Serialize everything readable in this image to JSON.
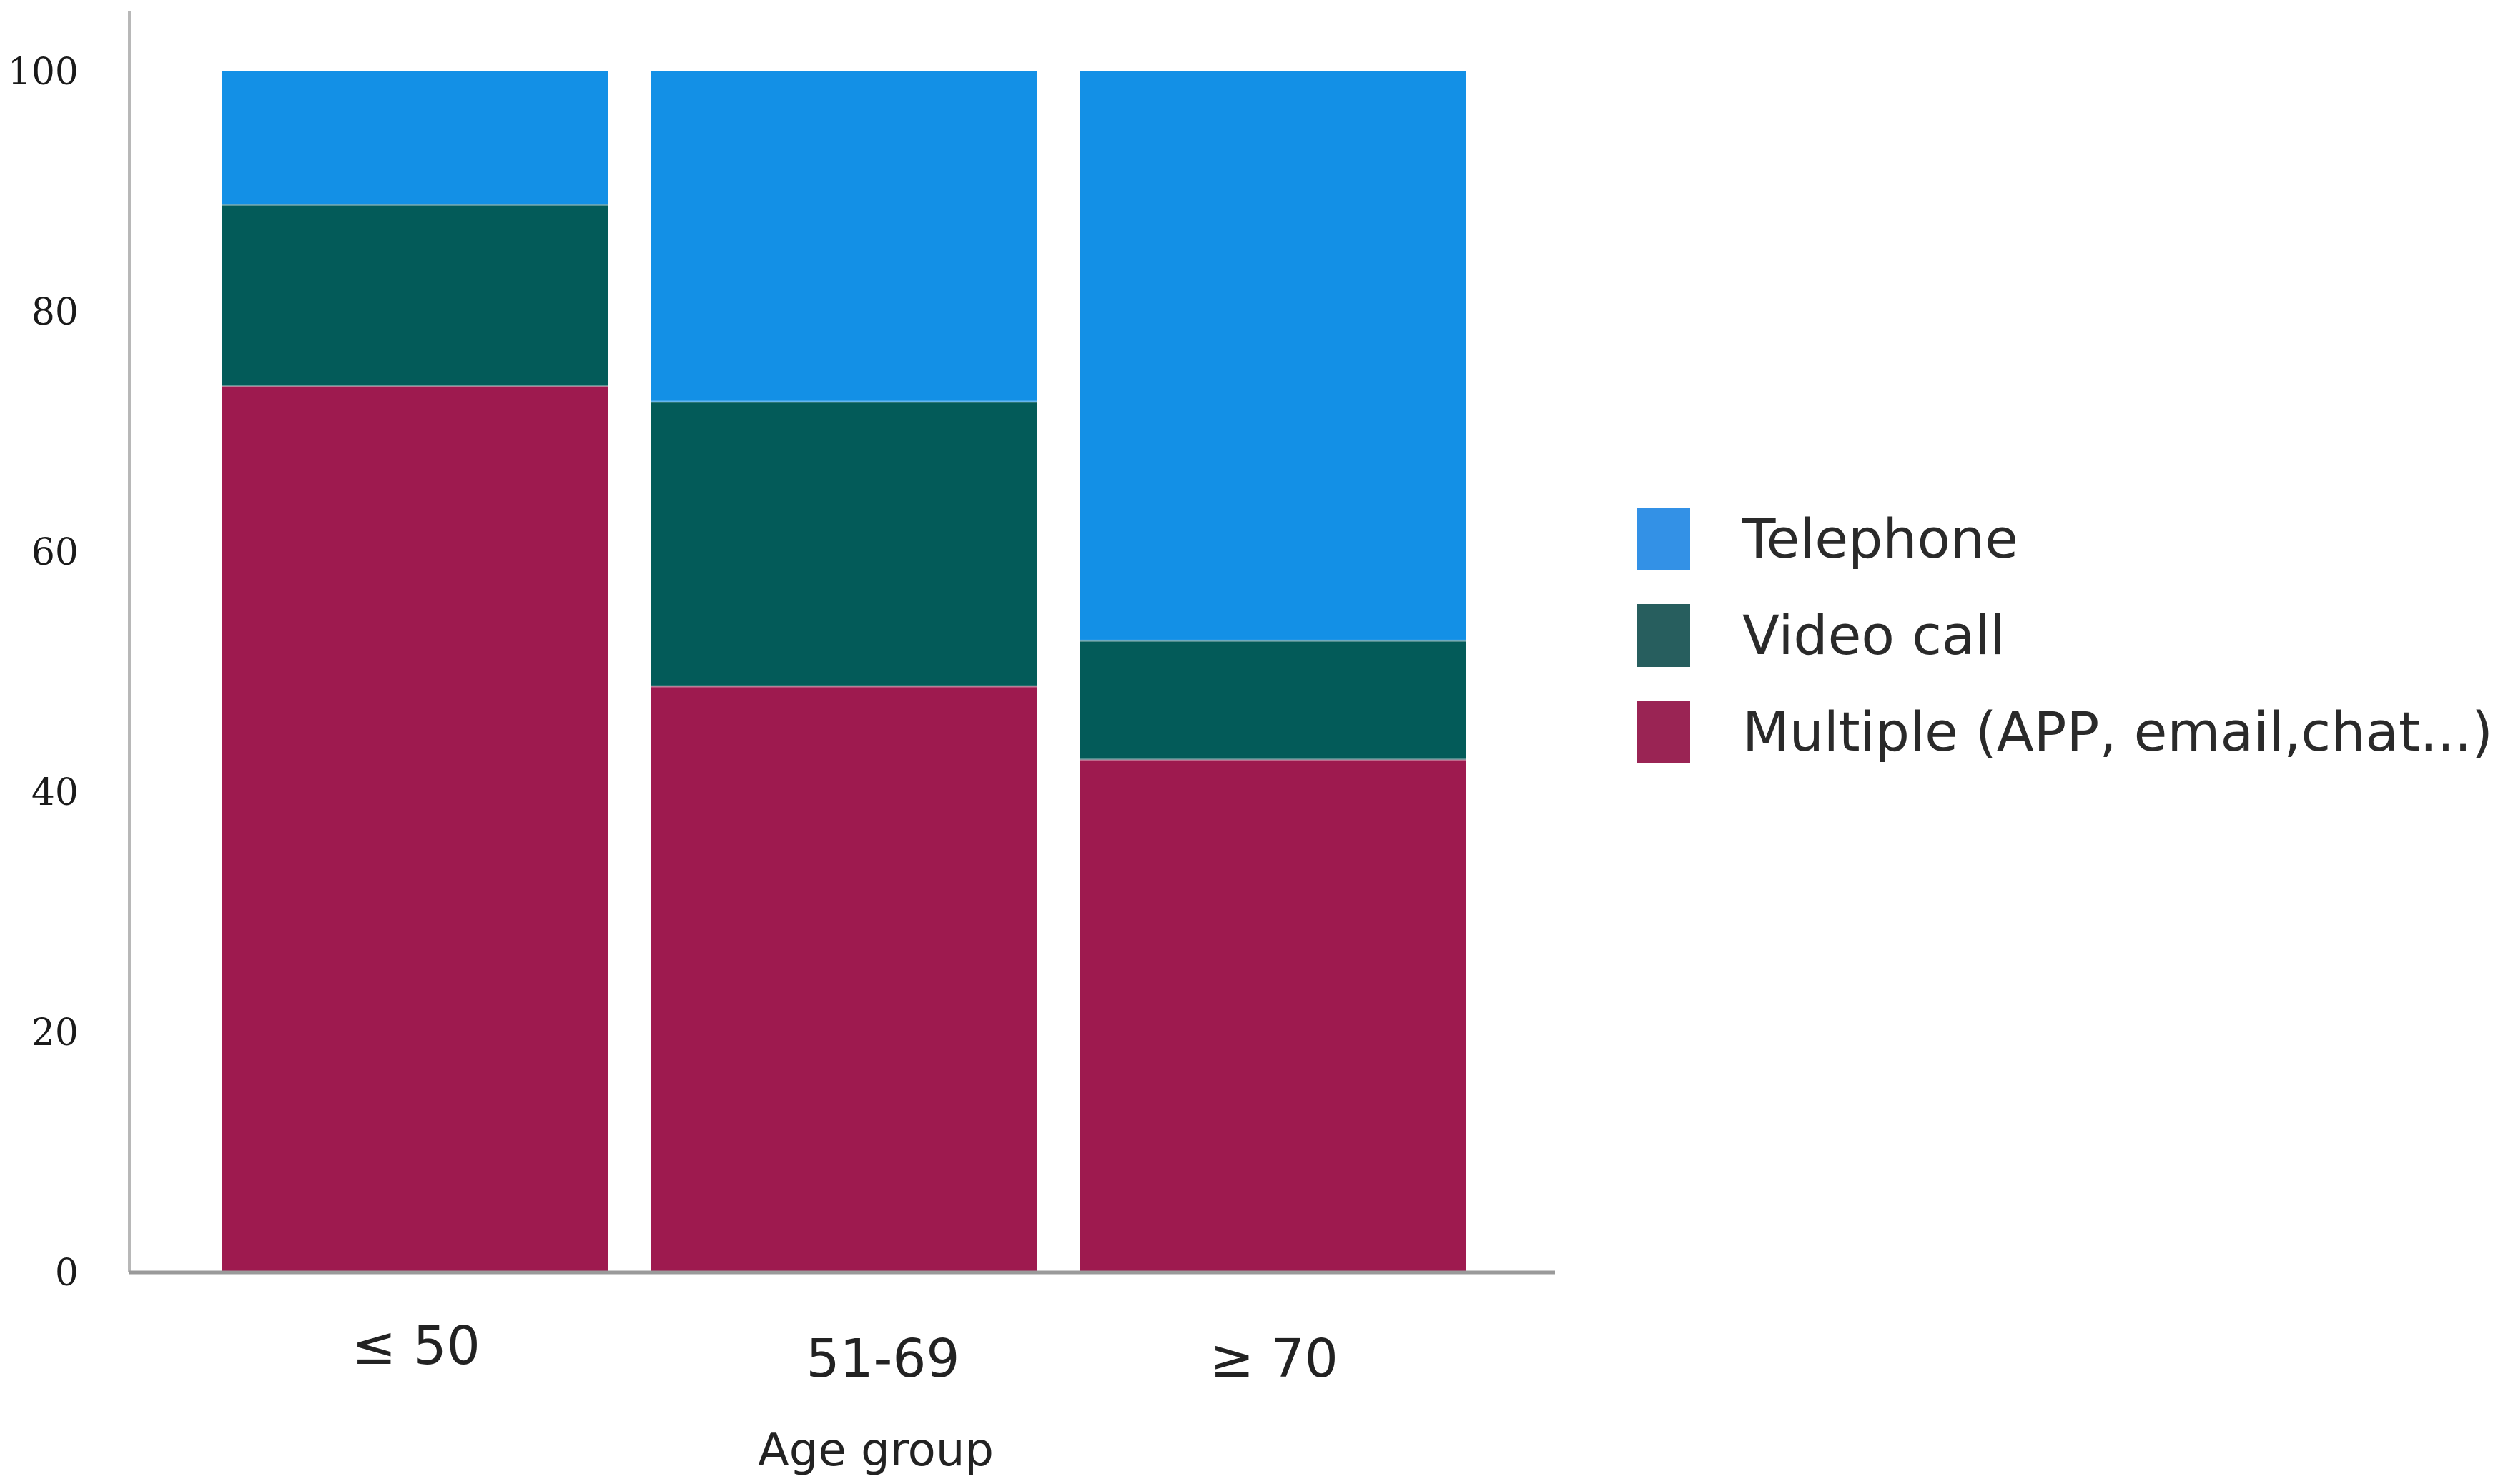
{
  "chart_data": {
    "type": "bar",
    "stacked": true,
    "categories": [
      "≤ 50",
      "51-69",
      "≥ 70"
    ],
    "series": [
      {
        "name": "Multiple (APP, email,chat...)",
        "values": [
          73.8,
          48.8,
          42.7
        ],
        "color": "#9e1a4f"
      },
      {
        "name": "Video call",
        "values": [
          15.1,
          23.7,
          9.9
        ],
        "color": "#035b59"
      },
      {
        "name": "Telephone",
        "values": [
          11.1,
          27.5,
          47.4
        ],
        "color": "#1390e6"
      }
    ],
    "legend_order": [
      "Telephone",
      "Video call",
      "Multiple (APP, email,chat...)"
    ],
    "legend_colors": {
      "Telephone": "#3391e6",
      "Video call": "#275e5e",
      "Multiple (APP, email,chat...)": "#9a2454"
    },
    "xlabel": "Age group",
    "ylabel": "",
    "ylim": [
      0,
      100
    ],
    "yticks": [
      "0",
      "20",
      "40",
      "60",
      "80",
      "100"
    ],
    "grid": false,
    "legend_position": "right"
  }
}
